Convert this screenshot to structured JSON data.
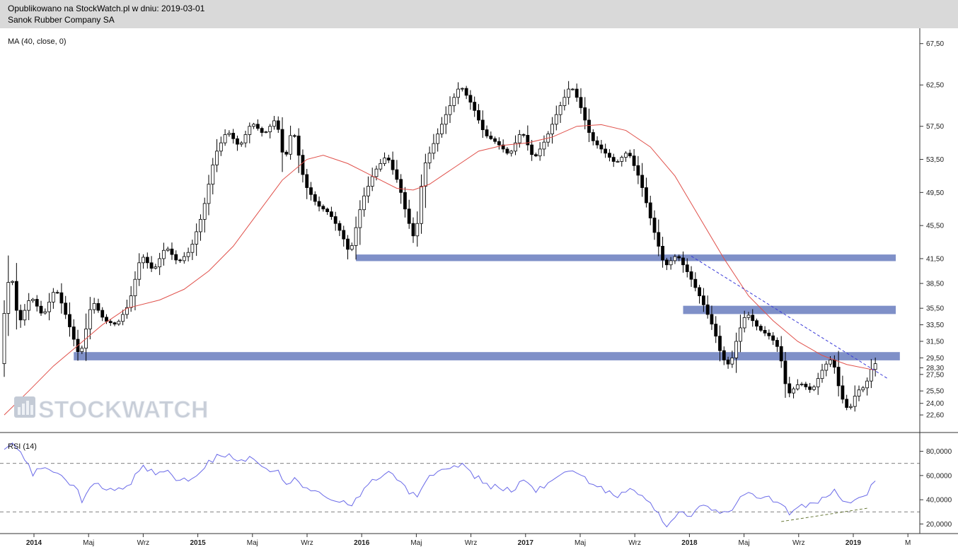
{
  "header": {
    "line1": "Opublikowano na StockWatch.pl w dniu: 2019-03-01",
    "line2": "Sanok Rubber Company SA"
  },
  "watermark": "STOCKWATCH",
  "colors": {
    "header_bg": "#d9d9d9",
    "ma": "#e0504a",
    "rsi": "#6a6ae8",
    "zone": "#7f90c8",
    "trend": "#3a3ad8",
    "rsi_trend": "#6a7a3a",
    "up_candle": "#ffffff",
    "down_candle": "#000000"
  },
  "chart_data": [
    {
      "type": "candlestick",
      "indicator_label": "MA (40, close, 0)",
      "y_ticks": [
        "67,50",
        "62,50",
        "57,50",
        "53,50",
        "49,50",
        "45,50",
        "41,50",
        "38,50",
        "35,50",
        "33,50",
        "31,50",
        "29,50",
        "28,30",
        "27,50",
        "25,50",
        "24,00",
        "22,60"
      ],
      "ylim": [
        21.5,
        68.5
      ],
      "x_ticks": [
        "2014",
        "Maj",
        "Wrz",
        "2015",
        "Maj",
        "Wrz",
        "2016",
        "Maj",
        "Wrz",
        "2017",
        "Maj",
        "Wrz",
        "2018",
        "Maj",
        "Wrz",
        "2019",
        "M"
      ],
      "price_path": [
        {
          "w": 0,
          "v": 33.0
        },
        {
          "w": 2,
          "v": 40.5
        },
        {
          "w": 4,
          "v": 33.5
        },
        {
          "w": 7,
          "v": 37.0
        },
        {
          "w": 10,
          "v": 34.5
        },
        {
          "w": 13,
          "v": 38.0
        },
        {
          "w": 15,
          "v": 35.5
        },
        {
          "w": 18,
          "v": 31.0
        },
        {
          "w": 19,
          "v": 29.5
        },
        {
          "w": 22,
          "v": 36.5
        },
        {
          "w": 25,
          "v": 34.0
        },
        {
          "w": 28,
          "v": 33.5
        },
        {
          "w": 31,
          "v": 36.0
        },
        {
          "w": 34,
          "v": 42.0
        },
        {
          "w": 37,
          "v": 40.0
        },
        {
          "w": 40,
          "v": 43.0
        },
        {
          "w": 43,
          "v": 41.0
        },
        {
          "w": 46,
          "v": 42.5
        },
        {
          "w": 49,
          "v": 47.0
        },
        {
          "w": 52,
          "v": 54.0
        },
        {
          "w": 55,
          "v": 57.0
        },
        {
          "w": 58,
          "v": 55.0
        },
        {
          "w": 61,
          "v": 58.0
        },
        {
          "w": 64,
          "v": 56.5
        },
        {
          "w": 67,
          "v": 58.5
        },
        {
          "w": 69,
          "v": 53.0
        },
        {
          "w": 71,
          "v": 57.5
        },
        {
          "w": 74,
          "v": 50.5
        },
        {
          "w": 77,
          "v": 48.0
        },
        {
          "w": 80,
          "v": 47.0
        },
        {
          "w": 83,
          "v": 44.5
        },
        {
          "w": 85,
          "v": 42.0
        },
        {
          "w": 88,
          "v": 48.5
        },
        {
          "w": 91,
          "v": 52.0
        },
        {
          "w": 94,
          "v": 54.0
        },
        {
          "w": 97,
          "v": 50.5
        },
        {
          "w": 99,
          "v": 46.5
        },
        {
          "w": 101,
          "v": 43.5
        },
        {
          "w": 103,
          "v": 52.5
        },
        {
          "w": 106,
          "v": 56.0
        },
        {
          "w": 109,
          "v": 59.5
        },
        {
          "w": 112,
          "v": 62.5
        },
        {
          "w": 115,
          "v": 60.0
        },
        {
          "w": 118,
          "v": 56.5
        },
        {
          "w": 121,
          "v": 55.5
        },
        {
          "w": 124,
          "v": 54.0
        },
        {
          "w": 127,
          "v": 57.0
        },
        {
          "w": 130,
          "v": 53.5
        },
        {
          "w": 133,
          "v": 56.0
        },
        {
          "w": 136,
          "v": 59.5
        },
        {
          "w": 139,
          "v": 62.5
        },
        {
          "w": 141,
          "v": 60.5
        },
        {
          "w": 144,
          "v": 56.0
        },
        {
          "w": 147,
          "v": 54.5
        },
        {
          "w": 150,
          "v": 53.0
        },
        {
          "w": 153,
          "v": 54.5
        },
        {
          "w": 156,
          "v": 51.0
        },
        {
          "w": 159,
          "v": 45.5
        },
        {
          "w": 162,
          "v": 40.5
        },
        {
          "w": 165,
          "v": 42.0
        },
        {
          "w": 168,
          "v": 39.5
        },
        {
          "w": 171,
          "v": 36.5
        },
        {
          "w": 174,
          "v": 33.0
        },
        {
          "w": 176,
          "v": 29.5
        },
        {
          "w": 178,
          "v": 28.5
        },
        {
          "w": 180,
          "v": 32.5
        },
        {
          "w": 182,
          "v": 35.0
        },
        {
          "w": 185,
          "v": 33.0
        },
        {
          "w": 188,
          "v": 32.0
        },
        {
          "w": 190,
          "v": 30.5
        },
        {
          "w": 192,
          "v": 25.0
        },
        {
          "w": 195,
          "v": 26.5
        },
        {
          "w": 198,
          "v": 25.5
        },
        {
          "w": 201,
          "v": 28.5
        },
        {
          "w": 203,
          "v": 29.5
        },
        {
          "w": 205,
          "v": 25.0
        },
        {
          "w": 207,
          "v": 23.0
        },
        {
          "w": 209,
          "v": 25.5
        },
        {
          "w": 211,
          "v": 26.0
        },
        {
          "w": 213,
          "v": 28.8
        }
      ],
      "ma_path": [
        {
          "w": 0,
          "v": 22.6
        },
        {
          "w": 6,
          "v": 25.5
        },
        {
          "w": 12,
          "v": 28.5
        },
        {
          "w": 18,
          "v": 31.0
        },
        {
          "w": 24,
          "v": 33.5
        },
        {
          "w": 30,
          "v": 35.5
        },
        {
          "w": 38,
          "v": 36.5
        },
        {
          "w": 44,
          "v": 37.8
        },
        {
          "w": 50,
          "v": 40.0
        },
        {
          "w": 56,
          "v": 43.0
        },
        {
          "w": 62,
          "v": 47.0
        },
        {
          "w": 68,
          "v": 51.0
        },
        {
          "w": 74,
          "v": 53.5
        },
        {
          "w": 78,
          "v": 54.0
        },
        {
          "w": 84,
          "v": 53.0
        },
        {
          "w": 90,
          "v": 51.5
        },
        {
          "w": 96,
          "v": 50.0
        },
        {
          "w": 100,
          "v": 49.8
        },
        {
          "w": 104,
          "v": 50.5
        },
        {
          "w": 110,
          "v": 52.5
        },
        {
          "w": 116,
          "v": 54.5
        },
        {
          "w": 122,
          "v": 55.2
        },
        {
          "w": 128,
          "v": 55.5
        },
        {
          "w": 134,
          "v": 56.2
        },
        {
          "w": 140,
          "v": 57.5
        },
        {
          "w": 146,
          "v": 57.7
        },
        {
          "w": 152,
          "v": 57.0
        },
        {
          "w": 158,
          "v": 55.0
        },
        {
          "w": 164,
          "v": 51.5
        },
        {
          "w": 170,
          "v": 46.5
        },
        {
          "w": 176,
          "v": 41.5
        },
        {
          "w": 182,
          "v": 37.0
        },
        {
          "w": 188,
          "v": 34.0
        },
        {
          "w": 194,
          "v": 31.5
        },
        {
          "w": 200,
          "v": 29.8
        },
        {
          "w": 206,
          "v": 28.7
        },
        {
          "w": 213,
          "v": 28.0
        }
      ],
      "support_zones": [
        {
          "from_w": 86,
          "to_w": 218,
          "low": 41.2,
          "high": 42.0
        },
        {
          "from_w": 166,
          "to_w": 218,
          "low": 34.8,
          "high": 35.8
        },
        {
          "from_w": 17,
          "to_w": 219,
          "low": 29.2,
          "high": 30.2
        }
      ],
      "trendline": {
        "from": {
          "w": 168,
          "v": 41.8
        },
        "to": {
          "w": 216,
          "v": 27.0
        }
      }
    },
    {
      "type": "line",
      "indicator_label": "RSI (14)",
      "y_ticks": [
        "80,0000",
        "60,0000",
        "40,0000",
        "20,0000"
      ],
      "ylim": [
        15,
        92
      ],
      "levels": [
        70,
        30
      ],
      "points": [
        {
          "w": 0,
          "v": 84
        },
        {
          "w": 2,
          "v": 88
        },
        {
          "w": 4,
          "v": 78
        },
        {
          "w": 7,
          "v": 62
        },
        {
          "w": 10,
          "v": 68
        },
        {
          "w": 13,
          "v": 62
        },
        {
          "w": 15,
          "v": 58
        },
        {
          "w": 18,
          "v": 46
        },
        {
          "w": 19,
          "v": 40
        },
        {
          "w": 22,
          "v": 55
        },
        {
          "w": 25,
          "v": 50
        },
        {
          "w": 28,
          "v": 48
        },
        {
          "w": 31,
          "v": 55
        },
        {
          "w": 34,
          "v": 68
        },
        {
          "w": 37,
          "v": 62
        },
        {
          "w": 40,
          "v": 62
        },
        {
          "w": 43,
          "v": 56
        },
        {
          "w": 46,
          "v": 58
        },
        {
          "w": 49,
          "v": 68
        },
        {
          "w": 52,
          "v": 76
        },
        {
          "w": 55,
          "v": 78
        },
        {
          "w": 58,
          "v": 72
        },
        {
          "w": 61,
          "v": 76
        },
        {
          "w": 64,
          "v": 65
        },
        {
          "w": 67,
          "v": 66
        },
        {
          "w": 69,
          "v": 52
        },
        {
          "w": 71,
          "v": 60
        },
        {
          "w": 74,
          "v": 48
        },
        {
          "w": 77,
          "v": 46
        },
        {
          "w": 80,
          "v": 42
        },
        {
          "w": 83,
          "v": 38
        },
        {
          "w": 85,
          "v": 35
        },
        {
          "w": 88,
          "v": 50
        },
        {
          "w": 91,
          "v": 58
        },
        {
          "w": 94,
          "v": 62
        },
        {
          "w": 97,
          "v": 56
        },
        {
          "w": 99,
          "v": 46
        },
        {
          "w": 101,
          "v": 42
        },
        {
          "w": 103,
          "v": 56
        },
        {
          "w": 106,
          "v": 62
        },
        {
          "w": 109,
          "v": 66
        },
        {
          "w": 112,
          "v": 70
        },
        {
          "w": 115,
          "v": 60
        },
        {
          "w": 118,
          "v": 52
        },
        {
          "w": 121,
          "v": 50
        },
        {
          "w": 124,
          "v": 48
        },
        {
          "w": 127,
          "v": 56
        },
        {
          "w": 130,
          "v": 48
        },
        {
          "w": 133,
          "v": 54
        },
        {
          "w": 136,
          "v": 62
        },
        {
          "w": 139,
          "v": 64
        },
        {
          "w": 141,
          "v": 60
        },
        {
          "w": 144,
          "v": 52
        },
        {
          "w": 147,
          "v": 48
        },
        {
          "w": 150,
          "v": 44
        },
        {
          "w": 153,
          "v": 50
        },
        {
          "w": 156,
          "v": 42
        },
        {
          "w": 159,
          "v": 32
        },
        {
          "w": 162,
          "v": 20
        },
        {
          "w": 165,
          "v": 30
        },
        {
          "w": 168,
          "v": 28
        },
        {
          "w": 171,
          "v": 36
        },
        {
          "w": 174,
          "v": 32
        },
        {
          "w": 176,
          "v": 28
        },
        {
          "w": 178,
          "v": 30
        },
        {
          "w": 180,
          "v": 42
        },
        {
          "w": 182,
          "v": 46
        },
        {
          "w": 185,
          "v": 42
        },
        {
          "w": 188,
          "v": 40
        },
        {
          "w": 190,
          "v": 38
        },
        {
          "w": 192,
          "v": 28
        },
        {
          "w": 195,
          "v": 36
        },
        {
          "w": 198,
          "v": 36
        },
        {
          "w": 201,
          "v": 44
        },
        {
          "w": 203,
          "v": 48
        },
        {
          "w": 205,
          "v": 38
        },
        {
          "w": 207,
          "v": 36
        },
        {
          "w": 209,
          "v": 42
        },
        {
          "w": 211,
          "v": 46
        },
        {
          "w": 213,
          "v": 54
        }
      ],
      "trendline": {
        "from": {
          "w": 190,
          "v": 22
        },
        "to": {
          "w": 211,
          "v": 33
        }
      }
    }
  ]
}
